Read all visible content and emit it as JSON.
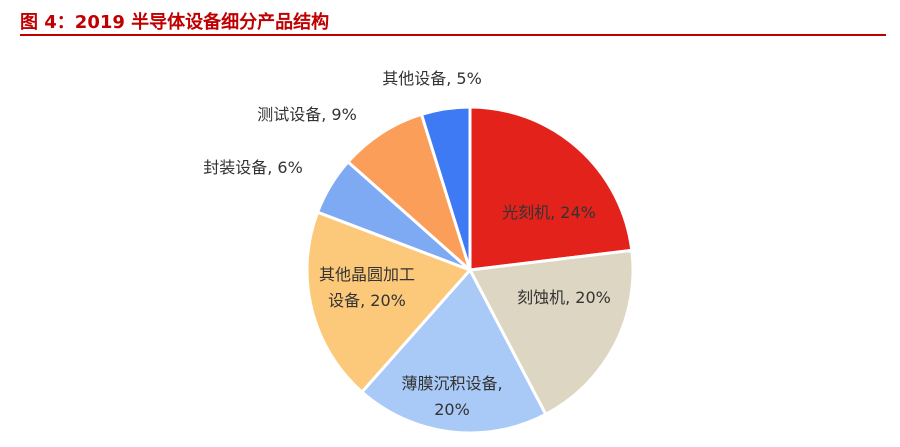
{
  "header": {
    "title": "图 4：2019 半导体设备细分产品结构"
  },
  "colors": {
    "title": "#c00000",
    "slice_border": "#ffffff"
  },
  "chart_data": {
    "type": "pie",
    "start_angle_deg": 0,
    "direction": "clockwise",
    "slices": [
      {
        "label": [
          "光刻机, 24%"
        ],
        "value": 24,
        "color": "#e3231b",
        "label_pos": "inside"
      },
      {
        "label": [
          "刻蚀机, 20%"
        ],
        "value": 20,
        "color": "#ddd6c2",
        "label_pos": "inside"
      },
      {
        "label": [
          "薄膜沉积设备,",
          "20%"
        ],
        "value": 20,
        "color": "#a9c9f7",
        "label_pos": "inside"
      },
      {
        "label": [
          "其他晶圆加工",
          "设备, 20%"
        ],
        "value": 20,
        "color": "#fcc97a",
        "label_pos": "inside"
      },
      {
        "label": [
          "封装设备, 6%"
        ],
        "value": 6,
        "color": "#7eaaf3",
        "label_pos": "outside"
      },
      {
        "label": [
          "测试设备, 9%"
        ],
        "value": 9,
        "color": "#fb9e59",
        "label_pos": "outside"
      },
      {
        "label": [
          "其他设备, 5%"
        ],
        "value": 5,
        "color": "#3f7af5",
        "label_pos": "outside"
      }
    ]
  }
}
